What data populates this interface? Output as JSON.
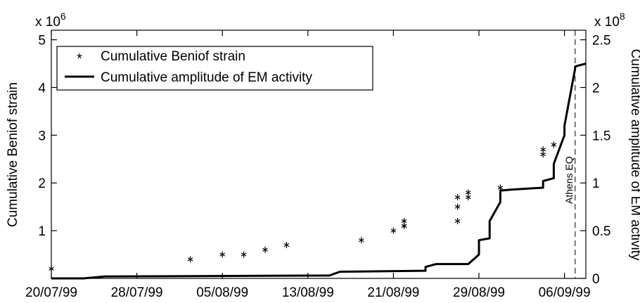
{
  "chart_data": {
    "type": "line",
    "x_axis": {
      "type": "date",
      "start": "1999-07-20",
      "end": "1999-09-08",
      "tick_labels": [
        "20/07/99",
        "28/07/99",
        "05/08/99",
        "13/08/99",
        "21/08/99",
        "29/08/99",
        "06/09/99"
      ],
      "tick_dates": [
        "1999-07-20",
        "1999-07-28",
        "1999-08-05",
        "1999-08-13",
        "1999-08-21",
        "1999-08-29",
        "1999-09-06"
      ]
    },
    "y_left": {
      "label": "Cumulative Beniof strain",
      "multiplier_label": "x 10",
      "multiplier_exp": "6",
      "range": [
        0,
        5.2
      ],
      "tick_values": [
        0,
        1,
        2,
        3,
        4,
        5
      ],
      "tick_labels": [
        "0",
        "1",
        "2",
        "3",
        "4",
        "5"
      ]
    },
    "y_right": {
      "label": "Cumulative amplitude of EM activity",
      "multiplier_label": "x 10",
      "multiplier_exp": "8",
      "range": [
        0,
        2.6
      ],
      "tick_values": [
        0,
        0.5,
        1,
        1.5,
        2,
        2.5
      ],
      "tick_labels": [
        "0",
        "0.5",
        "1",
        "1.5",
        "2",
        "2.5"
      ]
    },
    "legend": {
      "position": "top-left",
      "entries": [
        {
          "label": "Cumulative Beniof strain",
          "marker": "*"
        },
        {
          "label": "Cumulative amplitude of EM activity",
          "marker": "line"
        }
      ]
    },
    "series": [
      {
        "name": "Cumulative Beniof strain",
        "axis": "left",
        "style": "scatter-asterisk",
        "x": [
          "1999-07-20",
          "1999-08-02",
          "1999-08-05",
          "1999-08-07",
          "1999-08-09",
          "1999-08-11",
          "1999-08-18",
          "1999-08-21",
          "1999-08-22",
          "1999-08-22",
          "1999-08-22",
          "1999-08-27",
          "1999-08-27",
          "1999-08-27",
          "1999-08-28",
          "1999-08-28",
          "1999-08-31",
          "1999-09-04",
          "1999-09-04",
          "1999-09-05"
        ],
        "y": [
          0.2,
          0.4,
          0.5,
          0.5,
          0.6,
          0.7,
          0.8,
          1.0,
          1.1,
          1.1,
          1.2,
          1.2,
          1.5,
          1.7,
          1.7,
          1.8,
          1.9,
          2.6,
          2.7,
          2.8
        ]
      },
      {
        "name": "Cumulative amplitude of EM activity",
        "axis": "right",
        "style": "line",
        "x": [
          "1999-07-20",
          "1999-07-23",
          "1999-07-24",
          "1999-07-25",
          "1999-08-15",
          "1999-08-16",
          "1999-08-24",
          "1999-08-24",
          "1999-08-25",
          "1999-08-28",
          "1999-08-29",
          "1999-08-29",
          "1999-08-30",
          "1999-08-30",
          "1999-08-31",
          "1999-08-31",
          "1999-09-01",
          "1999-09-04",
          "1999-09-04",
          "1999-09-05",
          "1999-09-05",
          "1999-09-06",
          "1999-09-06",
          "1999-09-07",
          "1999-09-07",
          "1999-09-08"
        ],
        "y": [
          0,
          0,
          0.01,
          0.02,
          0.03,
          0.07,
          0.08,
          0.12,
          0.15,
          0.15,
          0.25,
          0.4,
          0.42,
          0.6,
          0.8,
          0.92,
          0.93,
          0.95,
          1.02,
          1.05,
          1.2,
          1.5,
          1.6,
          2.2,
          2.22,
          2.25
        ]
      }
    ],
    "annotations": [
      {
        "text": "Athens EQ",
        "x": "1999-09-07"
      }
    ]
  }
}
